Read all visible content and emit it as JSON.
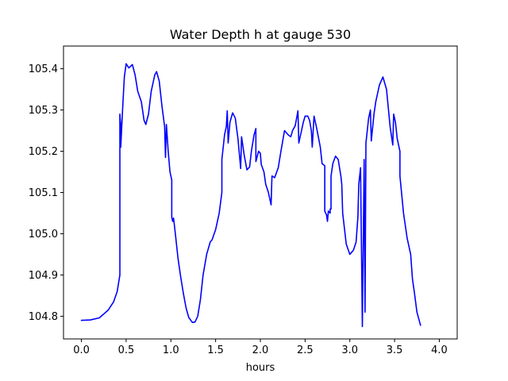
{
  "chart_data": {
    "type": "line",
    "title": "Water Depth h at gauge 530",
    "xlabel": "hours",
    "ylabel": "",
    "xlim": [
      -0.2,
      4.2
    ],
    "ylim": [
      104.745,
      105.455
    ],
    "grid": false,
    "line_color": "#0000ff",
    "x_ticks": [
      {
        "value": 0.0,
        "label": "0.0"
      },
      {
        "value": 0.5,
        "label": "0.5"
      },
      {
        "value": 1.0,
        "label": "1.0"
      },
      {
        "value": 1.5,
        "label": "1.5"
      },
      {
        "value": 2.0,
        "label": "2.0"
      },
      {
        "value": 2.5,
        "label": "2.5"
      },
      {
        "value": 3.0,
        "label": "3.0"
      },
      {
        "value": 3.5,
        "label": "3.5"
      },
      {
        "value": 4.0,
        "label": "4.0"
      }
    ],
    "y_ticks": [
      {
        "value": 104.8,
        "label": "104.8"
      },
      {
        "value": 104.9,
        "label": "104.9"
      },
      {
        "value": 105.0,
        "label": "105.0"
      },
      {
        "value": 105.1,
        "label": "105.1"
      },
      {
        "value": 105.2,
        "label": "105.2"
      },
      {
        "value": 105.3,
        "label": "105.3"
      },
      {
        "value": 105.4,
        "label": "105.4"
      }
    ],
    "series": [
      {
        "points": [
          [
            0.0,
            104.79
          ],
          [
            0.1,
            104.791
          ],
          [
            0.2,
            104.796
          ],
          [
            0.3,
            104.815
          ],
          [
            0.36,
            104.835
          ],
          [
            0.4,
            104.86
          ],
          [
            0.43,
            104.9
          ],
          [
            0.43,
            105.29
          ],
          [
            0.44,
            105.26
          ],
          [
            0.44,
            105.21
          ],
          [
            0.46,
            105.3
          ],
          [
            0.48,
            105.38
          ],
          [
            0.5,
            105.412
          ],
          [
            0.53,
            105.402
          ],
          [
            0.57,
            105.41
          ],
          [
            0.6,
            105.385
          ],
          [
            0.63,
            105.345
          ],
          [
            0.67,
            105.32
          ],
          [
            0.7,
            105.275
          ],
          [
            0.72,
            105.265
          ],
          [
            0.75,
            105.29
          ],
          [
            0.78,
            105.345
          ],
          [
            0.82,
            105.385
          ],
          [
            0.84,
            105.393
          ],
          [
            0.87,
            105.37
          ],
          [
            0.9,
            105.31
          ],
          [
            0.93,
            105.26
          ],
          [
            0.94,
            105.185
          ],
          [
            0.95,
            105.265
          ],
          [
            0.97,
            105.2
          ],
          [
            0.99,
            105.15
          ],
          [
            1.01,
            105.13
          ],
          [
            1.01,
            105.04
          ],
          [
            1.02,
            105.03
          ],
          [
            1.03,
            105.038
          ],
          [
            1.05,
            105.0
          ],
          [
            1.08,
            104.94
          ],
          [
            1.11,
            104.895
          ],
          [
            1.14,
            104.855
          ],
          [
            1.17,
            104.82
          ],
          [
            1.2,
            104.797
          ],
          [
            1.24,
            104.785
          ],
          [
            1.27,
            104.786
          ],
          [
            1.3,
            104.8
          ],
          [
            1.33,
            104.84
          ],
          [
            1.36,
            104.9
          ],
          [
            1.4,
            104.95
          ],
          [
            1.44,
            104.98
          ],
          [
            1.46,
            104.985
          ],
          [
            1.5,
            105.01
          ],
          [
            1.54,
            105.05
          ],
          [
            1.57,
            105.1
          ],
          [
            1.57,
            105.18
          ],
          [
            1.6,
            105.24
          ],
          [
            1.62,
            105.26
          ],
          [
            1.63,
            105.298
          ],
          [
            1.64,
            105.22
          ],
          [
            1.66,
            105.27
          ],
          [
            1.69,
            105.293
          ],
          [
            1.72,
            105.28
          ],
          [
            1.75,
            105.23
          ],
          [
            1.78,
            105.158
          ],
          [
            1.79,
            105.235
          ],
          [
            1.82,
            105.19
          ],
          [
            1.85,
            105.155
          ],
          [
            1.88,
            105.162
          ],
          [
            1.9,
            105.2
          ],
          [
            1.93,
            105.24
          ],
          [
            1.95,
            105.255
          ],
          [
            1.95,
            105.175
          ],
          [
            1.98,
            105.2
          ],
          [
            2.0,
            105.195
          ],
          [
            2.01,
            105.168
          ],
          [
            2.04,
            105.15
          ],
          [
            2.06,
            105.12
          ],
          [
            2.09,
            105.1
          ],
          [
            2.12,
            105.07
          ],
          [
            2.13,
            105.14
          ],
          [
            2.16,
            105.136
          ],
          [
            2.2,
            105.16
          ],
          [
            2.23,
            105.2
          ],
          [
            2.27,
            105.25
          ],
          [
            2.31,
            105.24
          ],
          [
            2.34,
            105.235
          ],
          [
            2.36,
            105.25
          ],
          [
            2.39,
            105.262
          ],
          [
            2.42,
            105.298
          ],
          [
            2.43,
            105.22
          ],
          [
            2.45,
            105.24
          ],
          [
            2.48,
            105.27
          ],
          [
            2.5,
            105.285
          ],
          [
            2.53,
            105.285
          ],
          [
            2.55,
            105.275
          ],
          [
            2.57,
            105.25
          ],
          [
            2.58,
            105.21
          ],
          [
            2.6,
            105.285
          ],
          [
            2.63,
            105.255
          ],
          [
            2.67,
            105.21
          ],
          [
            2.69,
            105.17
          ],
          [
            2.72,
            105.165
          ],
          [
            2.72,
            105.055
          ],
          [
            2.74,
            105.045
          ],
          [
            2.75,
            105.03
          ],
          [
            2.76,
            105.055
          ],
          [
            2.78,
            105.05
          ],
          [
            2.78,
            105.06
          ],
          [
            2.79,
            105.06
          ],
          [
            2.79,
            105.14
          ],
          [
            2.81,
            105.17
          ],
          [
            2.84,
            105.188
          ],
          [
            2.87,
            105.18
          ],
          [
            2.9,
            105.14
          ],
          [
            2.91,
            105.12
          ],
          [
            2.92,
            105.05
          ],
          [
            2.96,
            104.975
          ],
          [
            3.0,
            104.95
          ],
          [
            3.04,
            104.96
          ],
          [
            3.07,
            104.98
          ],
          [
            3.09,
            105.04
          ],
          [
            3.1,
            105.12
          ],
          [
            3.12,
            105.16
          ],
          [
            3.14,
            104.775
          ],
          [
            3.16,
            105.18
          ],
          [
            3.17,
            104.81
          ],
          [
            3.18,
            105.22
          ],
          [
            3.21,
            105.28
          ],
          [
            3.23,
            105.3
          ],
          [
            3.24,
            105.225
          ],
          [
            3.27,
            105.29
          ],
          [
            3.29,
            105.32
          ],
          [
            3.33,
            105.36
          ],
          [
            3.37,
            105.38
          ],
          [
            3.41,
            105.35
          ],
          [
            3.45,
            105.26
          ],
          [
            3.48,
            105.215
          ],
          [
            3.49,
            105.29
          ],
          [
            3.51,
            105.27
          ],
          [
            3.53,
            105.23
          ],
          [
            3.56,
            105.2
          ],
          [
            3.56,
            105.14
          ],
          [
            3.6,
            105.05
          ],
          [
            3.64,
            104.99
          ],
          [
            3.68,
            104.95
          ],
          [
            3.7,
            104.89
          ],
          [
            3.72,
            104.86
          ],
          [
            3.75,
            104.81
          ],
          [
            3.79,
            104.778
          ]
        ]
      }
    ]
  }
}
